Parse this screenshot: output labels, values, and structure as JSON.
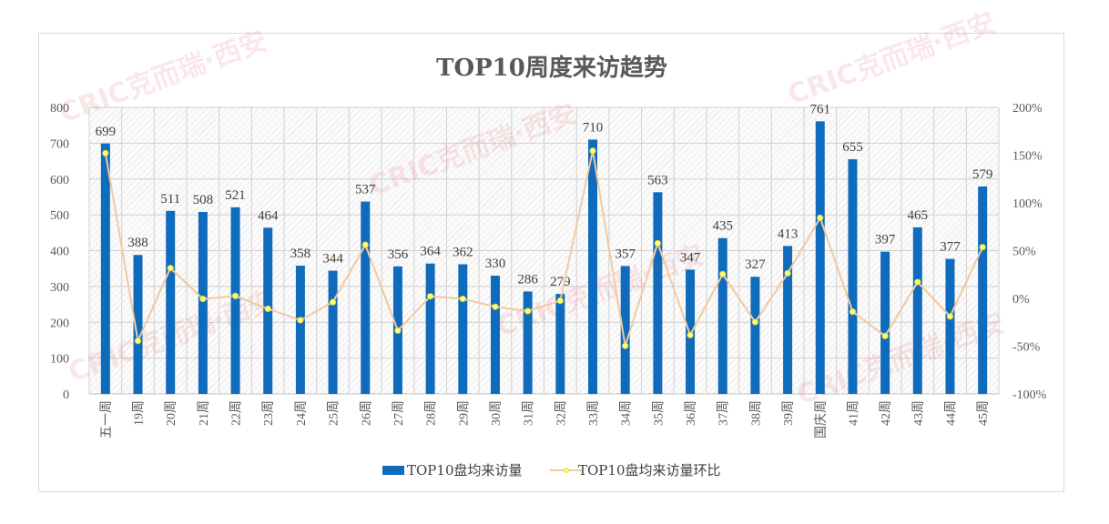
{
  "chart_data": {
    "type": "bar+line",
    "title": "TOP10周度来访趋势",
    "categories": [
      "五一周",
      "19周",
      "20周",
      "21周",
      "22周",
      "23周",
      "24周",
      "25周",
      "26周",
      "27周",
      "28周",
      "29周",
      "30周",
      "31周",
      "32周",
      "33周",
      "34周",
      "35周",
      "36周",
      "37周",
      "38周",
      "39周",
      "国庆周",
      "41周",
      "42周",
      "43周",
      "44周",
      "45周"
    ],
    "series": [
      {
        "name": "TOP10盘均来访量",
        "type": "bar",
        "axis": "left",
        "color": "#0f6cbd",
        "values": [
          699,
          388,
          511,
          508,
          521,
          464,
          358,
          344,
          537,
          356,
          364,
          362,
          330,
          286,
          279,
          710,
          357,
          563,
          347,
          435,
          327,
          413,
          761,
          655,
          397,
          465,
          377,
          579
        ]
      },
      {
        "name": "TOP10盘均来访量环比",
        "type": "line",
        "axis": "right",
        "color": "#f2c9a1",
        "marker_color": "#ffff66",
        "values": [
          152,
          -44.5,
          31.7,
          -0.6,
          2.6,
          -10.9,
          -22.8,
          -3.9,
          56.1,
          -33.7,
          2.2,
          -0.5,
          -8.8,
          -13.3,
          -2.4,
          154.5,
          -49.7,
          57.7,
          -38.4,
          25.4,
          -24.8,
          26.3,
          84.3,
          -13.9,
          -39.4,
          17.1,
          -18.9,
          53.6
        ]
      }
    ],
    "y_left": {
      "range": [
        0,
        800
      ],
      "ticks": [
        "0",
        "100",
        "200",
        "300",
        "400",
        "500",
        "600",
        "700",
        "800"
      ]
    },
    "y_right": {
      "range": [
        -100,
        200
      ],
      "ticks": [
        "-100%",
        "-50%",
        "0%",
        "50%",
        "100%",
        "150%",
        "200%"
      ]
    },
    "grid": true,
    "legend": "bottom",
    "watermark": "CRIC克而瑞·西安"
  }
}
